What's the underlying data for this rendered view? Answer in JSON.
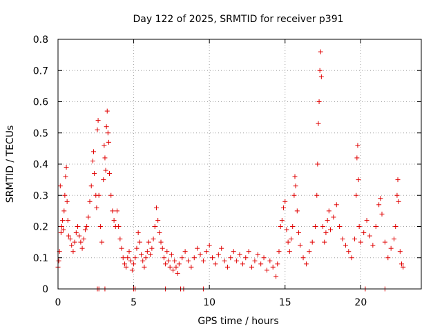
{
  "chart_data": {
    "type": "scatter",
    "title": "Day 122 of 2025, SRMTID for receiver p391",
    "xlabel": "GPS time / hours",
    "ylabel": "SRMTID / TECUs",
    "xlim": [
      0,
      24
    ],
    "ylim": [
      0,
      0.8
    ],
    "xticks": [
      0,
      5,
      10,
      15,
      20
    ],
    "xtick_labels": [
      "0",
      "5",
      "10",
      "15",
      "20"
    ],
    "yticks": [
      0,
      0.1,
      0.2,
      0.3,
      0.4,
      0.5,
      0.6,
      0.7,
      0.8
    ],
    "ytick_labels": [
      "0",
      "0.1",
      "0.2",
      "0.3",
      "0.4",
      "0.5",
      "0.6",
      "0.7",
      "0.8"
    ],
    "grid": true,
    "marker": "+",
    "series": [
      {
        "name": "SRMTID",
        "color": "#e00000",
        "points": [
          [
            0.0,
            0.07
          ],
          [
            0.05,
            0.09
          ],
          [
            0.1,
            0.12
          ],
          [
            0.15,
            0.33
          ],
          [
            0.2,
            0.18
          ],
          [
            0.25,
            0.2
          ],
          [
            0.3,
            0.22
          ],
          [
            0.35,
            0.19
          ],
          [
            0.4,
            0.25
          ],
          [
            0.45,
            0.3
          ],
          [
            0.5,
            0.36
          ],
          [
            0.55,
            0.39
          ],
          [
            0.6,
            0.28
          ],
          [
            0.65,
            0.22
          ],
          [
            0.7,
            0.17
          ],
          [
            0.8,
            0.16
          ],
          [
            0.9,
            0.14
          ],
          [
            1.0,
            0.12
          ],
          [
            1.1,
            0.15
          ],
          [
            1.2,
            0.18
          ],
          [
            1.3,
            0.2
          ],
          [
            1.4,
            0.17
          ],
          [
            1.5,
            0.15
          ],
          [
            1.6,
            0.13
          ],
          [
            1.7,
            0.16
          ],
          [
            1.8,
            0.19
          ],
          [
            1.9,
            0.2
          ],
          [
            2.0,
            0.23
          ],
          [
            2.1,
            0.28
          ],
          [
            2.2,
            0.33
          ],
          [
            2.3,
            0.41
          ],
          [
            2.35,
            0.44
          ],
          [
            2.4,
            0.37
          ],
          [
            2.5,
            0.3
          ],
          [
            2.55,
            0.26
          ],
          [
            2.6,
            0.51
          ],
          [
            2.65,
            0.54
          ],
          [
            2.7,
            0.3
          ],
          [
            2.8,
            0.2
          ],
          [
            2.9,
            0.15
          ],
          [
            3.0,
            0.35
          ],
          [
            3.05,
            0.46
          ],
          [
            3.1,
            0.42
          ],
          [
            3.15,
            0.38
          ],
          [
            3.2,
            0.52
          ],
          [
            3.25,
            0.57
          ],
          [
            3.3,
            0.5
          ],
          [
            3.35,
            0.47
          ],
          [
            3.4,
            0.37
          ],
          [
            3.5,
            0.3
          ],
          [
            3.6,
            0.25
          ],
          [
            3.7,
            0.22
          ],
          [
            3.8,
            0.2
          ],
          [
            3.9,
            0.25
          ],
          [
            4.0,
            0.2
          ],
          [
            4.1,
            0.16
          ],
          [
            4.2,
            0.13
          ],
          [
            4.3,
            0.1
          ],
          [
            4.4,
            0.08
          ],
          [
            4.5,
            0.07
          ],
          [
            4.6,
            0.1
          ],
          [
            4.7,
            0.12
          ],
          [
            4.8,
            0.09
          ],
          [
            4.9,
            0.06
          ],
          [
            5.0,
            0.08
          ],
          [
            5.1,
            0.1
          ],
          [
            5.2,
            0.13
          ],
          [
            5.3,
            0.18
          ],
          [
            5.4,
            0.15
          ],
          [
            5.5,
            0.11
          ],
          [
            5.6,
            0.09
          ],
          [
            5.7,
            0.07
          ],
          [
            5.8,
            0.1
          ],
          [
            5.9,
            0.12
          ],
          [
            6.0,
            0.15
          ],
          [
            6.1,
            0.11
          ],
          [
            6.2,
            0.13
          ],
          [
            6.3,
            0.16
          ],
          [
            6.4,
            0.2
          ],
          [
            6.5,
            0.26
          ],
          [
            6.6,
            0.22
          ],
          [
            6.7,
            0.18
          ],
          [
            6.8,
            0.15
          ],
          [
            6.9,
            0.13
          ],
          [
            7.0,
            0.1
          ],
          [
            7.1,
            0.08
          ],
          [
            7.2,
            0.12
          ],
          [
            7.3,
            0.09
          ],
          [
            7.4,
            0.07
          ],
          [
            7.5,
            0.11
          ],
          [
            7.6,
            0.06
          ],
          [
            7.7,
            0.09
          ],
          [
            7.8,
            0.07
          ],
          [
            7.9,
            0.05
          ],
          [
            8.0,
            0.08
          ],
          [
            8.2,
            0.1
          ],
          [
            8.4,
            0.12
          ],
          [
            8.6,
            0.09
          ],
          [
            8.8,
            0.07
          ],
          [
            9.0,
            0.1
          ],
          [
            9.2,
            0.13
          ],
          [
            9.4,
            0.11
          ],
          [
            9.6,
            0.09
          ],
          [
            9.8,
            0.12
          ],
          [
            10.0,
            0.14
          ],
          [
            10.2,
            0.1
          ],
          [
            10.4,
            0.08
          ],
          [
            10.6,
            0.11
          ],
          [
            10.8,
            0.13
          ],
          [
            11.0,
            0.09
          ],
          [
            11.2,
            0.07
          ],
          [
            11.4,
            0.1
          ],
          [
            11.6,
            0.12
          ],
          [
            11.8,
            0.09
          ],
          [
            12.0,
            0.11
          ],
          [
            12.2,
            0.08
          ],
          [
            12.4,
            0.1
          ],
          [
            12.6,
            0.12
          ],
          [
            12.8,
            0.07
          ],
          [
            13.0,
            0.09
          ],
          [
            13.2,
            0.11
          ],
          [
            13.4,
            0.08
          ],
          [
            13.6,
            0.1
          ],
          [
            13.8,
            0.06
          ],
          [
            14.0,
            0.09
          ],
          [
            14.2,
            0.07
          ],
          [
            14.4,
            0.04
          ],
          [
            14.5,
            0.08
          ],
          [
            14.6,
            0.12
          ],
          [
            14.7,
            0.2
          ],
          [
            14.8,
            0.22
          ],
          [
            14.9,
            0.26
          ],
          [
            15.0,
            0.28
          ],
          [
            15.1,
            0.19
          ],
          [
            15.2,
            0.15
          ],
          [
            15.3,
            0.12
          ],
          [
            15.4,
            0.16
          ],
          [
            15.5,
            0.2
          ],
          [
            15.6,
            0.3
          ],
          [
            15.65,
            0.36
          ],
          [
            15.7,
            0.33
          ],
          [
            15.8,
            0.25
          ],
          [
            15.9,
            0.18
          ],
          [
            16.0,
            0.14
          ],
          [
            16.2,
            0.1
          ],
          [
            16.4,
            0.08
          ],
          [
            16.6,
            0.12
          ],
          [
            16.8,
            0.15
          ],
          [
            17.0,
            0.2
          ],
          [
            17.1,
            0.3
          ],
          [
            17.15,
            0.4
          ],
          [
            17.2,
            0.53
          ],
          [
            17.25,
            0.6
          ],
          [
            17.3,
            0.7
          ],
          [
            17.35,
            0.76
          ],
          [
            17.4,
            0.68
          ],
          [
            17.5,
            0.2
          ],
          [
            17.6,
            0.15
          ],
          [
            17.7,
            0.18
          ],
          [
            17.8,
            0.22
          ],
          [
            17.9,
            0.25
          ],
          [
            18.0,
            0.19
          ],
          [
            18.2,
            0.23
          ],
          [
            18.4,
            0.27
          ],
          [
            18.6,
            0.2
          ],
          [
            18.8,
            0.16
          ],
          [
            19.0,
            0.14
          ],
          [
            19.2,
            0.12
          ],
          [
            19.4,
            0.1
          ],
          [
            19.6,
            0.16
          ],
          [
            19.7,
            0.3
          ],
          [
            19.75,
            0.42
          ],
          [
            19.8,
            0.46
          ],
          [
            19.85,
            0.35
          ],
          [
            19.9,
            0.2
          ],
          [
            20.0,
            0.15
          ],
          [
            20.2,
            0.18
          ],
          [
            20.4,
            0.22
          ],
          [
            20.6,
            0.17
          ],
          [
            20.8,
            0.14
          ],
          [
            21.0,
            0.2
          ],
          [
            21.2,
            0.27
          ],
          [
            21.3,
            0.29
          ],
          [
            21.4,
            0.24
          ],
          [
            21.6,
            0.15
          ],
          [
            21.8,
            0.1
          ],
          [
            22.0,
            0.13
          ],
          [
            22.2,
            0.16
          ],
          [
            22.3,
            0.2
          ],
          [
            22.4,
            0.3
          ],
          [
            22.45,
            0.35
          ],
          [
            22.5,
            0.28
          ],
          [
            22.6,
            0.12
          ],
          [
            22.7,
            0.08
          ],
          [
            22.8,
            0.07
          ]
        ]
      }
    ],
    "zero_markers": [
      2.6,
      2.7,
      3.1,
      5.0,
      5.1,
      7.1,
      8.1,
      8.3,
      9.6,
      20.3,
      21.6
    ]
  }
}
